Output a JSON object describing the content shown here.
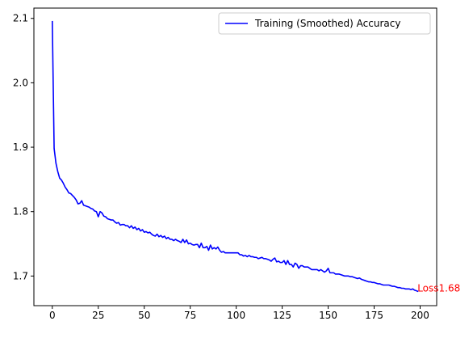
{
  "chart_data": {
    "type": "line",
    "title": "",
    "xlabel": "",
    "ylabel": "",
    "xlim": [
      -10,
      209
    ],
    "ylim": [
      1.654,
      2.116
    ],
    "xticks": [
      0,
      25,
      50,
      75,
      100,
      125,
      150,
      175,
      200
    ],
    "yticks": [
      1.7,
      1.8,
      1.9,
      2.0,
      2.1
    ],
    "xtick_labels": [
      "0",
      "25",
      "50",
      "75",
      "100",
      "125",
      "150",
      "175",
      "200"
    ],
    "ytick_labels": [
      "1.7",
      "1.8",
      "1.9",
      "2.0",
      "2.1"
    ],
    "grid": false,
    "legend_position": "top-right",
    "series": [
      {
        "name": "Training (Smoothed) Accuracy",
        "color": "#0000ff",
        "x": [
          0,
          1,
          2,
          3,
          4,
          5,
          6,
          7,
          8,
          9,
          10,
          11,
          12,
          13,
          14,
          15,
          16,
          17,
          18,
          19,
          20,
          21,
          22,
          23,
          24,
          25,
          26,
          27,
          28,
          29,
          30,
          31,
          32,
          33,
          34,
          35,
          36,
          37,
          38,
          39,
          40,
          41,
          42,
          43,
          44,
          45,
          46,
          47,
          48,
          49,
          50,
          51,
          52,
          53,
          54,
          55,
          56,
          57,
          58,
          59,
          60,
          61,
          62,
          63,
          64,
          65,
          66,
          67,
          68,
          69,
          70,
          71,
          72,
          73,
          74,
          75,
          76,
          77,
          78,
          79,
          80,
          81,
          82,
          83,
          84,
          85,
          86,
          87,
          88,
          89,
          90,
          91,
          92,
          93,
          94,
          95,
          96,
          97,
          98,
          99,
          100,
          101,
          102,
          103,
          104,
          105,
          106,
          107,
          108,
          109,
          110,
          111,
          112,
          113,
          114,
          115,
          116,
          117,
          118,
          119,
          120,
          121,
          122,
          123,
          124,
          125,
          126,
          127,
          128,
          129,
          130,
          131,
          132,
          133,
          134,
          135,
          136,
          137,
          138,
          139,
          140,
          141,
          142,
          143,
          144,
          145,
          146,
          147,
          148,
          149,
          150,
          151,
          152,
          153,
          154,
          155,
          156,
          157,
          158,
          159,
          160,
          161,
          162,
          163,
          164,
          165,
          166,
          167,
          168,
          169,
          170,
          171,
          172,
          173,
          174,
          175,
          176,
          177,
          178,
          179,
          180,
          181,
          182,
          183,
          184,
          185,
          186,
          187,
          188,
          189,
          190,
          191,
          192,
          193,
          194,
          195,
          196,
          197,
          198,
          199
        ],
        "values": [
          2.096,
          1.898,
          1.875,
          1.862,
          1.852,
          1.849,
          1.844,
          1.838,
          1.834,
          1.829,
          1.828,
          1.825,
          1.822,
          1.818,
          1.812,
          1.813,
          1.817,
          1.81,
          1.809,
          1.808,
          1.807,
          1.805,
          1.804,
          1.801,
          1.8,
          1.792,
          1.8,
          1.798,
          1.793,
          1.792,
          1.789,
          1.788,
          1.787,
          1.787,
          1.784,
          1.782,
          1.783,
          1.779,
          1.78,
          1.78,
          1.778,
          1.778,
          1.775,
          1.778,
          1.774,
          1.776,
          1.772,
          1.774,
          1.77,
          1.772,
          1.768,
          1.769,
          1.767,
          1.768,
          1.765,
          1.763,
          1.762,
          1.765,
          1.761,
          1.763,
          1.76,
          1.762,
          1.758,
          1.76,
          1.757,
          1.757,
          1.755,
          1.757,
          1.755,
          1.754,
          1.752,
          1.757,
          1.752,
          1.756,
          1.75,
          1.751,
          1.749,
          1.748,
          1.749,
          1.749,
          1.744,
          1.751,
          1.744,
          1.744,
          1.746,
          1.74,
          1.748,
          1.742,
          1.744,
          1.742,
          1.745,
          1.74,
          1.737,
          1.738,
          1.736,
          1.736,
          1.736,
          1.736,
          1.736,
          1.736,
          1.736,
          1.736,
          1.733,
          1.733,
          1.731,
          1.732,
          1.73,
          1.732,
          1.73,
          1.73,
          1.729,
          1.729,
          1.727,
          1.728,
          1.729,
          1.727,
          1.727,
          1.726,
          1.725,
          1.723,
          1.726,
          1.728,
          1.722,
          1.723,
          1.721,
          1.721,
          1.724,
          1.718,
          1.724,
          1.718,
          1.718,
          1.714,
          1.72,
          1.718,
          1.712,
          1.716,
          1.716,
          1.714,
          1.714,
          1.714,
          1.712,
          1.71,
          1.71,
          1.71,
          1.71,
          1.708,
          1.71,
          1.708,
          1.706,
          1.708,
          1.712,
          1.705,
          1.705,
          1.705,
          1.703,
          1.703,
          1.703,
          1.702,
          1.701,
          1.7,
          1.7,
          1.7,
          1.699,
          1.699,
          1.698,
          1.697,
          1.696,
          1.697,
          1.695,
          1.694,
          1.693,
          1.692,
          1.691,
          1.691,
          1.69,
          1.69,
          1.689,
          1.688,
          1.688,
          1.687,
          1.686,
          1.686,
          1.686,
          1.686,
          1.685,
          1.684,
          1.684,
          1.683,
          1.682,
          1.682,
          1.681,
          1.681,
          1.68,
          1.68,
          1.68,
          1.679,
          1.68,
          1.678,
          1.677,
          1.676
        ]
      }
    ],
    "annotations": [
      {
        "text": "Loss1.68",
        "x": 199,
        "y": 1.675,
        "color": "#ff0000"
      }
    ]
  }
}
